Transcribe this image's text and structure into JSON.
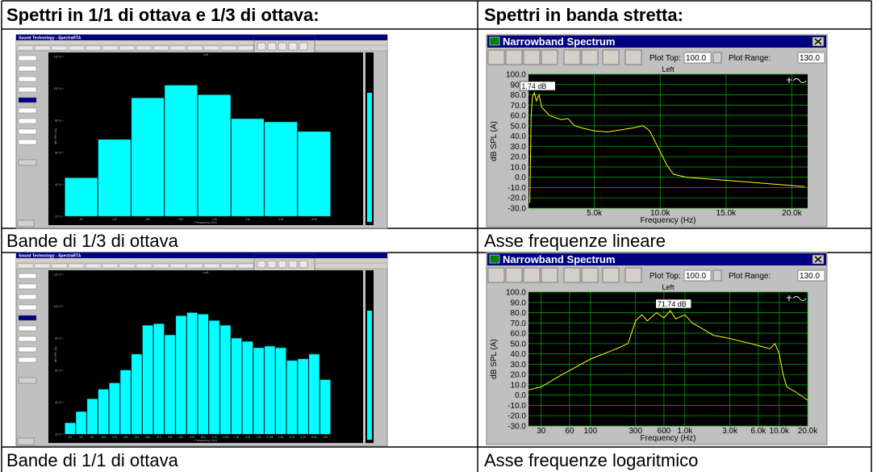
{
  "header": {
    "left": "Spettri in 1/1 di ottava e 1/3 di ottava:",
    "right": "Spettri in banda stretta:"
  },
  "captions": [
    "Bande di 1/3 di ottava",
    "Asse frequenze lineare",
    "Bande di 1/1 di ottava",
    "Asse frequenze logaritmico"
  ],
  "chart_data": [
    {
      "type": "bar",
      "window_title": "Sound Technology - SpectraRTA",
      "title": "Left",
      "x_label": "Frequency (Hz)",
      "y_label": "dB SPL (A)",
      "categories": [
        "63",
        "125",
        "250",
        "500",
        "1.0k",
        "2.0k",
        "4.0k",
        "8.0k"
      ],
      "values": [
        44,
        68,
        94,
        102,
        96,
        81,
        79,
        73
      ],
      "color": "#00ffff",
      "ylim": [
        20,
        120
      ],
      "yticks": [
        {
          "value": 20,
          "label": "20.0"
        },
        {
          "value": 40,
          "label": "40.0"
        },
        {
          "value": 60,
          "label": "60.0"
        },
        {
          "value": 80,
          "label": "80.0"
        },
        {
          "value": 100,
          "label": "100.0"
        },
        {
          "value": 120,
          "label": "120.0"
        }
      ]
    },
    {
      "type": "line",
      "window_title": "Narrowband Spectrum",
      "plot_top_label": "Plot Top:",
      "plot_top": "100.0",
      "plot_range_label": "Plot Range:",
      "plot_range": "130.0",
      "title": "Left",
      "x_label": "Frequency (Hz)",
      "y_label": "dB SPL (A)",
      "annotation": "1.74 dB",
      "x": [
        100,
        200,
        300,
        450,
        600,
        800,
        1000,
        1300,
        1600,
        2000,
        2500,
        3000,
        3500,
        4000,
        5000,
        6000,
        7000,
        8000,
        8700,
        9200,
        9600,
        10000,
        10500,
        11000,
        12000,
        14000,
        16000,
        18000,
        21000
      ],
      "values": [
        -25,
        60,
        78,
        82,
        74,
        80,
        68,
        64,
        60,
        58,
        56,
        57,
        50,
        48,
        45,
        44,
        46,
        48,
        50,
        45,
        35,
        25,
        12,
        3,
        0,
        -2,
        -4,
        -6,
        -9
      ],
      "color": "#ffff00",
      "log_x": false,
      "grid": true,
      "xlim": [
        0,
        21200
      ],
      "xticks": [
        {
          "value": 5000,
          "label": "5.0k"
        },
        {
          "value": 10000,
          "label": "10.0k"
        },
        {
          "value": 15000,
          "label": "15.0k"
        },
        {
          "value": 20000,
          "label": "20.0k"
        }
      ],
      "ylim": [
        -30,
        100
      ],
      "yticks": [
        {
          "value": 100,
          "label": "100.0"
        },
        {
          "value": 90,
          "label": "90.0"
        },
        {
          "value": 80,
          "label": "80.0"
        },
        {
          "value": 70,
          "label": "70.0"
        },
        {
          "value": 60,
          "label": "60.0"
        },
        {
          "value": 50,
          "label": "50.0"
        },
        {
          "value": 40,
          "label": "40.0"
        },
        {
          "value": 30,
          "label": "30.0"
        },
        {
          "value": 20,
          "label": "20.0"
        },
        {
          "value": 10,
          "label": "10.0"
        },
        {
          "value": 0,
          "label": "0.0"
        },
        {
          "value": -10,
          "label": "-10.0"
        },
        {
          "value": -20,
          "label": "-20.0"
        },
        {
          "value": -30,
          "label": "-30.0"
        }
      ]
    },
    {
      "type": "bar",
      "window_title": "Sound Technology - SpectraRTA",
      "title": "Left",
      "x_label": "Frequency (Hz)",
      "y_label": "dB SPL (A)",
      "categories": [
        "50",
        "63",
        "80",
        "100",
        "125",
        "160",
        "200",
        "250",
        "315",
        "400",
        "500",
        "630",
        "800",
        "1.0k",
        "1.25k",
        "1.6k",
        "2.0k",
        "2.5k",
        "3.15k",
        "4.0k",
        "5.0k",
        "6.3k",
        "8.0k",
        "10k"
      ],
      "values": [
        27,
        34,
        42,
        48,
        52,
        60,
        70,
        88,
        89,
        82,
        94,
        96,
        95,
        91,
        88,
        80,
        78,
        74,
        75,
        74,
        66,
        67,
        70,
        54
      ],
      "color": "#00ffff",
      "ylim": [
        20,
        120
      ],
      "yticks": [
        {
          "value": 20,
          "label": "20.0"
        },
        {
          "value": 40,
          "label": "40.0"
        },
        {
          "value": 60,
          "label": "60.0"
        },
        {
          "value": 80,
          "label": "80.0"
        },
        {
          "value": 100,
          "label": "100.0"
        },
        {
          "value": 120,
          "label": "120.0"
        }
      ]
    },
    {
      "type": "line",
      "window_title": "Narrowband Spectrum",
      "plot_top_label": "Plot Top:",
      "plot_top": "100.0",
      "plot_range_label": "Plot Range:",
      "plot_range": "130.0",
      "title": "Left",
      "x_label": "Frequency (Hz)",
      "y_label": "dB SPL (A)",
      "annotation": "71.74 dB",
      "x": [
        22,
        30,
        50,
        100,
        200,
        250,
        300,
        350,
        400,
        500,
        600,
        700,
        800,
        1000,
        1200,
        1500,
        2000,
        3000,
        4000,
        5000,
        6000,
        8000,
        9000,
        10000,
        11000,
        12000,
        15000,
        20000
      ],
      "values": [
        5,
        8,
        20,
        35,
        46,
        50,
        72,
        78,
        72,
        80,
        75,
        82,
        74,
        78,
        70,
        65,
        58,
        55,
        52,
        50,
        48,
        45,
        50,
        40,
        20,
        8,
        3,
        -5
      ],
      "color": "#ffff00",
      "log_x": true,
      "grid": true,
      "xlim": [
        22,
        20000
      ],
      "xticks": [
        30,
        60,
        100,
        300,
        600,
        {
          "value": 1000,
          "label": "1.0k"
        },
        {
          "value": 3000,
          "label": "3.0k"
        },
        {
          "value": 6000,
          "label": "6.0k"
        },
        {
          "value": 10000,
          "label": "10.0k"
        },
        {
          "value": 20000,
          "label": "20.0k"
        }
      ],
      "ylim": [
        -30,
        100
      ],
      "yticks": [
        {
          "value": 100,
          "label": "100.0"
        },
        {
          "value": 90,
          "label": "90.0"
        },
        {
          "value": 80,
          "label": "80.0"
        },
        {
          "value": 70,
          "label": "70.0"
        },
        {
          "value": 60,
          "label": "60.0"
        },
        {
          "value": 50,
          "label": "50.0"
        },
        {
          "value": 40,
          "label": "40.0"
        },
        {
          "value": 30,
          "label": "30.0"
        },
        {
          "value": 20,
          "label": "20.0"
        },
        {
          "value": 10,
          "label": "10.0"
        },
        {
          "value": 0,
          "label": "0.0"
        },
        {
          "value": -10,
          "label": "-10.0"
        },
        {
          "value": -20,
          "label": "-20.0"
        },
        {
          "value": -30,
          "label": "-30.0"
        }
      ]
    }
  ]
}
